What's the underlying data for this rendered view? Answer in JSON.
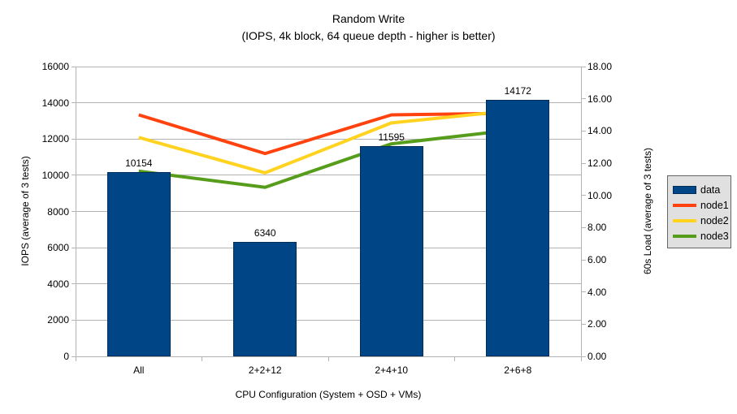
{
  "chart_data": {
    "type": "bar+line",
    "title": "Random Write",
    "subtitle": "(IOPS, 4k block, 64 queue depth - higher is better)",
    "xlabel": "CPU Configuration (System + OSD + VMs)",
    "ylabel_left": "IOPS (average of 3 tests)",
    "ylabel_right": "60s Load (average of 3 tests)",
    "categories": [
      "All",
      "2+2+12",
      "2+4+10",
      "2+6+8"
    ],
    "bar_series": {
      "name": "data",
      "axis": "left",
      "color": "#004586",
      "values": [
        10154,
        6340,
        11595,
        14172
      ],
      "data_labels": [
        "10154",
        "6340",
        "11595",
        "14172"
      ]
    },
    "line_series": [
      {
        "name": "node1",
        "axis": "right",
        "color": "#FF420E",
        "values": [
          15.0,
          12.6,
          15.0,
          15.1
        ]
      },
      {
        "name": "node2",
        "axis": "right",
        "color": "#FFD320",
        "values": [
          13.6,
          11.4,
          14.5,
          15.3
        ]
      },
      {
        "name": "node3",
        "axis": "right",
        "color": "#579D1C",
        "values": [
          11.5,
          10.5,
          13.2,
          14.1
        ]
      }
    ],
    "y_left": {
      "min": 0,
      "max": 16000,
      "step": 2000,
      "tick_labels": [
        "0",
        "2000",
        "4000",
        "6000",
        "8000",
        "10000",
        "12000",
        "14000",
        "16000"
      ]
    },
    "y_right": {
      "min": 0,
      "max": 18,
      "step": 2,
      "decimals": 2,
      "tick_labels": [
        "0.00",
        "2.00",
        "4.00",
        "6.00",
        "8.00",
        "10.00",
        "12.00",
        "14.00",
        "16.00",
        "18.00"
      ]
    },
    "grid": "horizontal-major",
    "grid_color": "#b3b3b3",
    "legend_position": "right",
    "legend": [
      "data",
      "node1",
      "node2",
      "node3"
    ],
    "legend_style": {
      "background": "#e0e0e0",
      "border": "#666666"
    }
  }
}
